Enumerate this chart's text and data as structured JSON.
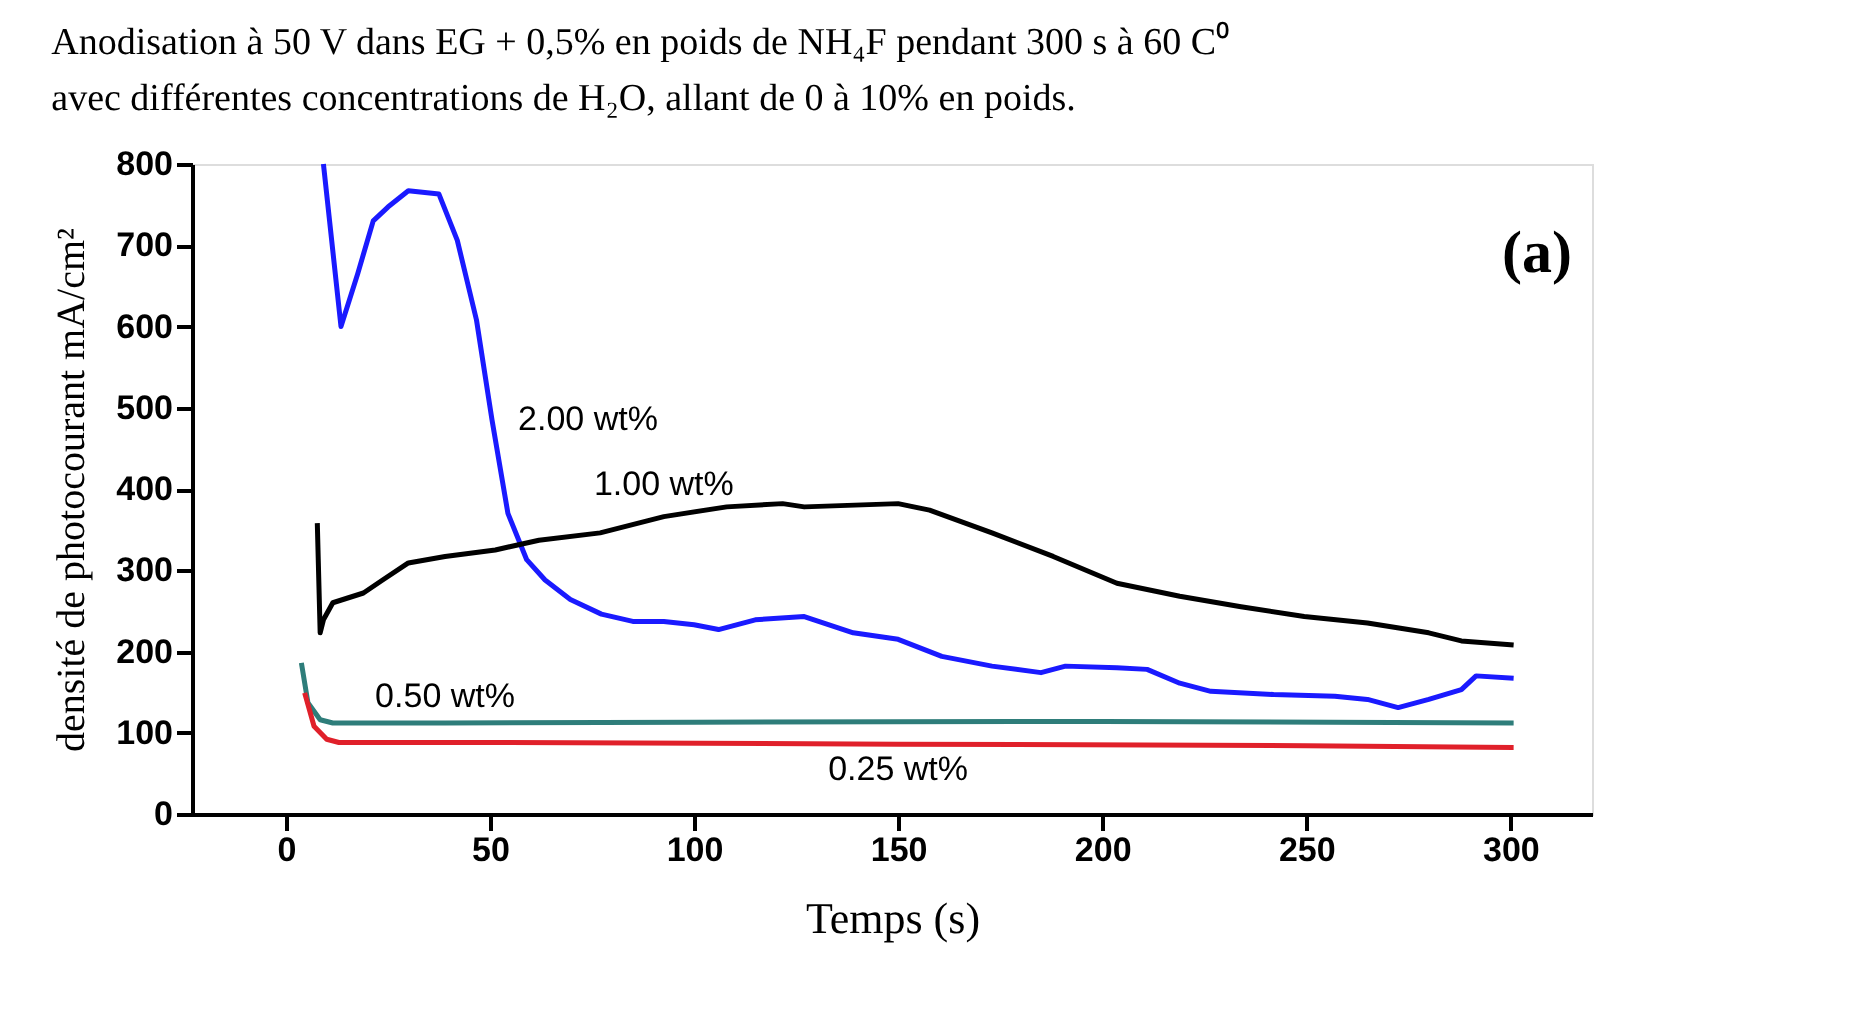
{
  "chart_data": {
    "type": "line",
    "title": [
      "Anodisation à 50 V dans EG + 0,5% en poids de NH₄F pendant 300 s à 60 C⁰",
      "avec différentes concentrations de H₂O, allant de 0 à 10% en poids."
    ],
    "xlabel": "Temps (s)",
    "ylabel": "densité de photocourant mA/cm²",
    "annotations": [
      "(a)"
    ],
    "xlim": [
      -23,
      320
    ],
    "ylim": [
      0,
      800
    ],
    "xticks": [
      0,
      50,
      100,
      150,
      200,
      250,
      300
    ],
    "yticks": [
      0,
      100,
      200,
      300,
      400,
      500,
      600,
      700,
      800
    ],
    "grid": false,
    "legend": false,
    "marker": "none",
    "line_style": "solid",
    "series": [
      {
        "name": "2.00 wt%",
        "color": "#1a1aff",
        "x": [
          9.2,
          13.5,
          17.6,
          21.4,
          25,
          30,
          37.5,
          42,
          46.7,
          50.5,
          54.4,
          59,
          63.5,
          69.7,
          77.3,
          85,
          92.6,
          100,
          106,
          115,
          127,
          139,
          150,
          160.7,
          173,
          185,
          191,
          203.6,
          211,
          219,
          226.6,
          242,
          257,
          265,
          272.5,
          280,
          288,
          291.6,
          300.8
        ],
        "values": [
          800,
          600,
          665,
          730,
          747,
          767,
          763,
          706,
          608,
          485,
          370,
          313,
          288,
          264,
          246,
          237,
          237,
          233,
          227,
          239,
          243,
          223,
          215,
          194,
          182,
          174,
          182,
          180,
          178,
          161,
          151,
          147,
          145,
          141,
          131,
          141,
          153,
          170,
          167
        ]
      },
      {
        "name": "1.00 wt%",
        "color": "#000000",
        "x": [
          7.7,
          8.4,
          9.2,
          11.5,
          19,
          23.7,
          30,
          39,
          51.3,
          62,
          77,
          92.6,
          108,
          121.7,
          127,
          150,
          157.7,
          173,
          188,
          203.6,
          219,
          234,
          249.5,
          265,
          280,
          288,
          300.8
        ],
        "values": [
          358,
          223,
          239,
          260,
          272,
          288,
          309,
          317,
          325,
          337,
          346,
          366,
          378,
          382,
          378,
          382,
          374,
          346,
          317,
          284,
          268,
          255,
          243,
          235,
          223,
          213,
          208
        ]
      },
      {
        "name": "0.50 wt%",
        "color": "#2e7d7a",
        "x": [
          3.8,
          5.4,
          8.4,
          11.5,
          39,
          100,
          200,
          300.8
        ],
        "values": [
          186,
          137,
          116,
          112,
          112,
          113,
          114,
          112
        ]
      },
      {
        "name": "0.25 wt%",
        "color": "#e0202a",
        "x": [
          4.6,
          6.9,
          10,
          13,
          54,
          150,
          250,
          300.8
        ],
        "values": [
          149,
          108,
          92,
          88,
          88,
          86,
          84,
          82
        ]
      }
    ]
  }
}
